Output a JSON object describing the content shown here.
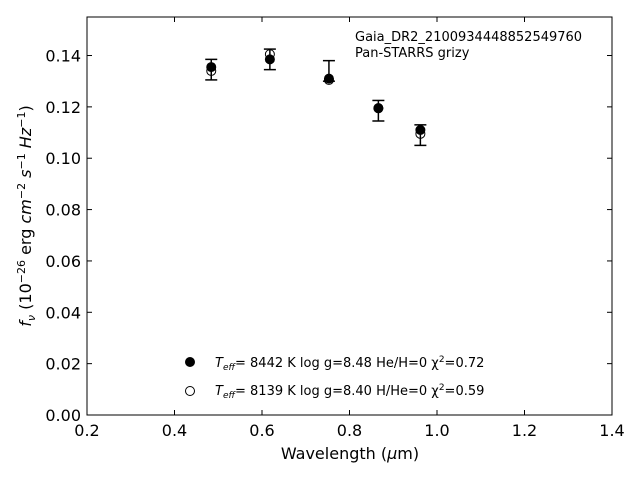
{
  "chart_data": {
    "type": "scatter",
    "annotation": [
      "Gaia_DR2_2100934448852549760",
      "Pan-STARRS grizy"
    ],
    "xlabel": {
      "main": "Wavelength (",
      "mu": "μ",
      "unit": "m)"
    },
    "ylabel": {
      "main": "f",
      "sub": "ν",
      "prefix": " (10",
      "exp1": "−26",
      "mid": " erg ",
      "cm": "cm",
      "exp2": "−2",
      "s": " s",
      "exp3": "−1",
      "hz": " Hz",
      "exp4": "−1",
      "close": ")"
    },
    "xlim": [
      0.2,
      1.4
    ],
    "ylim": [
      0.0,
      0.155
    ],
    "xticks": [
      0.2,
      0.4,
      0.6,
      0.8,
      1.0,
      1.2,
      1.4
    ],
    "xtick_labels": [
      "0.2",
      "0.4",
      "0.6",
      "0.8",
      "1.0",
      "1.2",
      "1.4"
    ],
    "yticks": [
      0.0,
      0.02,
      0.04,
      0.06,
      0.08,
      0.1,
      0.12,
      0.14
    ],
    "ytick_labels": [
      "0.00",
      "0.02",
      "0.04",
      "0.06",
      "0.08",
      "0.10",
      "0.12",
      "0.14"
    ],
    "grid": false,
    "observed": {
      "x": [
        0.484,
        0.618,
        0.753,
        0.866,
        0.962
      ],
      "y": [
        0.1345,
        0.1385,
        0.134,
        0.1185,
        0.109
      ],
      "yerr": [
        0.004,
        0.004,
        0.004,
        0.004,
        0.004
      ]
    },
    "series": [
      {
        "marker": "filled",
        "x": [
          0.484,
          0.618,
          0.753,
          0.866,
          0.962
        ],
        "y": [
          0.1355,
          0.1385,
          0.131,
          0.1195,
          0.111
        ],
        "legend": {
          "teff_label": "T",
          "teff_sub": "eff",
          "text": "=  8442 K  log g=8.48  He/H=0  χ",
          "chi_exp": "2",
          "chi_val": "=0.72"
        }
      },
      {
        "marker": "open",
        "x": [
          0.484,
          0.618,
          0.753,
          0.866,
          0.962
        ],
        "y": [
          0.134,
          0.1405,
          0.1305,
          0.1195,
          0.1095
        ],
        "legend": {
          "teff_label": "T",
          "teff_sub": "eff",
          "text": "=  8139 K  log g=8.40  H/He=0  χ",
          "chi_exp": "2",
          "chi_val": "=0.59"
        }
      }
    ],
    "legend_position": "lower-center"
  }
}
